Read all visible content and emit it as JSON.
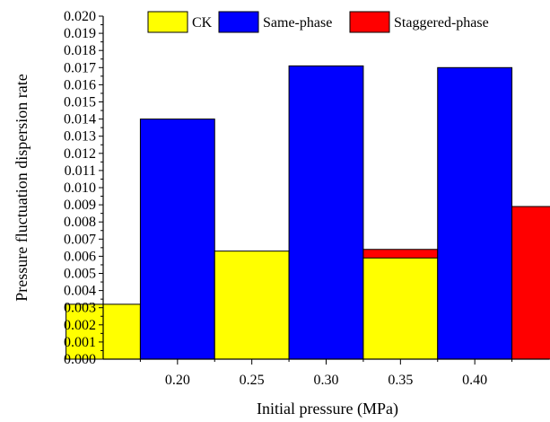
{
  "chart_data": {
    "type": "bar",
    "xlabel": "Initial pressure (MPa)",
    "ylabel": "Pressure fluctuation dispersion rate",
    "ylim": [
      0,
      0.02
    ],
    "yticks": [
      "0.000",
      "0.001",
      "0.002",
      "0.003",
      "0.004",
      "0.005",
      "0.006",
      "0.007",
      "0.008",
      "0.009",
      "0.010",
      "0.011",
      "0.012",
      "0.013",
      "0.014",
      "0.015",
      "0.016",
      "0.017",
      "0.018",
      "0.019",
      "0.020"
    ],
    "xlim": [
      0.15,
      0.45
    ],
    "xticks": [
      "0.20",
      "0.25",
      "0.30",
      "0.35",
      "0.40"
    ],
    "categories": [
      "0.20",
      "0.30",
      "0.40"
    ],
    "series": [
      {
        "name": "CK",
        "color": "#ffff00",
        "values": [
          0.0032,
          0.0063,
          0.0059
        ]
      },
      {
        "name": "Same-phase",
        "color": "#0000ff",
        "values": [
          0.014,
          0.0171,
          0.017
        ]
      },
      {
        "name": "Staggered-phase",
        "color": "#ff0000",
        "values": [
          0.0057,
          0.0064,
          0.0089
        ]
      }
    ],
    "legend": "top-right",
    "grid": false
  }
}
